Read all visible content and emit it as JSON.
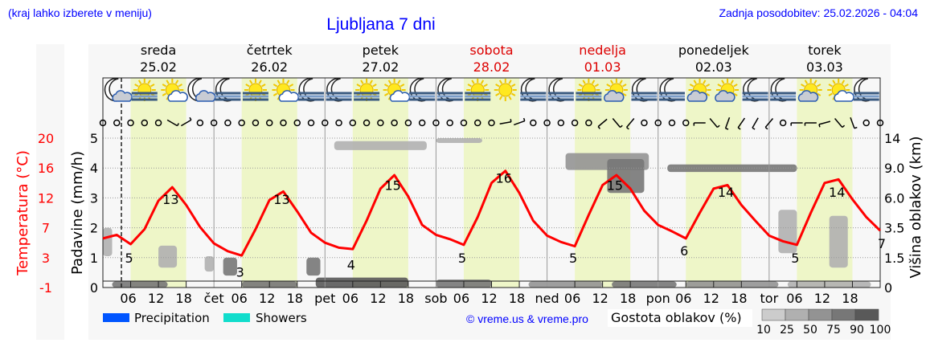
{
  "header": {
    "hint": "(kraj lahko izberete v meniju)",
    "title": "Ljubljana 7 dni",
    "updated": "Zadnja posodobitev: 25.02.2026 - 04:04"
  },
  "colors": {
    "accent": "#0000ff",
    "weekend": "#dd0000",
    "temperature": "#ff0000",
    "day_band": "#eef6c8",
    "precipitation": "#0055ff",
    "showers": "#11ddcc"
  },
  "days": [
    {
      "name": "sreda",
      "date": "25.02",
      "weekend": false,
      "abbr": ""
    },
    {
      "name": "četrtek",
      "date": "26.02",
      "weekend": false,
      "abbr": "čet"
    },
    {
      "name": "petek",
      "date": "27.02",
      "weekend": false,
      "abbr": "pet"
    },
    {
      "name": "sobota",
      "date": "28.02",
      "weekend": true,
      "abbr": "sob"
    },
    {
      "name": "nedelja",
      "date": "01.03",
      "weekend": true,
      "abbr": "ned"
    },
    {
      "name": "ponedeljek",
      "date": "02.03",
      "weekend": false,
      "abbr": "pon"
    },
    {
      "name": "torek",
      "date": "03.03",
      "weekend": false,
      "abbr": "tor"
    }
  ],
  "chart_data": {
    "type": "line",
    "x_unit": "hours from 25.02 00:00",
    "now_marker_hour": 4,
    "hour_ticks": [
      "06",
      "12",
      "18"
    ],
    "left_axis": {
      "label": "Padavine (mm/h)",
      "ticks": [
        0,
        1,
        2,
        3,
        4,
        5
      ],
      "range": [
        0,
        5
      ]
    },
    "temp_axis": {
      "label": "Temperatura (°C)",
      "ticks": [
        -1,
        3,
        7,
        12,
        16,
        20
      ],
      "range": [
        -1,
        20
      ]
    },
    "right_axis": {
      "label": "Višina oblakov (km)",
      "ticks": [
        "0",
        "1.5",
        "3.5",
        "6.0",
        "9.0",
        "14"
      ],
      "values": [
        0,
        1.5,
        3.5,
        6,
        9,
        14
      ]
    },
    "temperature": {
      "step_hours": 3,
      "values": [
        5.9,
        6.4,
        5.1,
        7.2,
        11.2,
        13.1,
        10.6,
        7.5,
        5.2,
        4.1,
        3.5,
        7.2,
        11.3,
        12.5,
        9.7,
        6.7,
        5.3,
        4.6,
        4.4,
        8.4,
        12.9,
        14.8,
        11.8,
        7.8,
        6.4,
        5.8,
        5.0,
        8.9,
        13.7,
        15.4,
        12.3,
        8.4,
        6.3,
        5.4,
        4.8,
        9.2,
        13.4,
        14.8,
        12.9,
        9.8,
        7.8,
        6.9,
        5.9,
        9.5,
        12.9,
        13.4,
        10.6,
        8.4,
        6.3,
        5.5,
        5.0,
        9.5,
        13.7,
        14.2,
        11.4,
        8.9,
        7.0
      ]
    },
    "temp_labels": [
      {
        "hour": 6,
        "text": "5"
      },
      {
        "hour": 15,
        "text": "13"
      },
      {
        "hour": 30,
        "text": "3"
      },
      {
        "hour": 39,
        "text": "13"
      },
      {
        "hour": 54,
        "text": "4"
      },
      {
        "hour": 63,
        "text": "15"
      },
      {
        "hour": 78,
        "text": "5"
      },
      {
        "hour": 87,
        "text": "16"
      },
      {
        "hour": 102,
        "text": "5"
      },
      {
        "hour": 111,
        "text": "15"
      },
      {
        "hour": 126,
        "text": "6"
      },
      {
        "hour": 135,
        "text": "14"
      },
      {
        "hour": 150,
        "text": "5"
      },
      {
        "hour": 159,
        "text": "14"
      },
      {
        "hour": 168,
        "text": "7"
      }
    ],
    "clouds": [
      {
        "t0": 2,
        "t1": 14,
        "h0": 0,
        "h1": 0.3,
        "density": 85
      },
      {
        "t0": 30,
        "t1": 42,
        "h0": 0,
        "h1": 0.3,
        "density": 80
      },
      {
        "t0": 46,
        "t1": 66,
        "h0": 0,
        "h1": 0.5,
        "density": 90
      },
      {
        "t0": 72,
        "t1": 84,
        "h0": 0,
        "h1": 0.4,
        "density": 80
      },
      {
        "t0": 92,
        "t1": 108,
        "h0": 0,
        "h1": 0.3,
        "density": 70
      },
      {
        "t0": 110,
        "t1": 124,
        "h0": 0,
        "h1": 0.3,
        "density": 75
      },
      {
        "t0": 126,
        "t1": 146,
        "h0": 0,
        "h1": 0.3,
        "density": 55
      },
      {
        "t0": 148,
        "t1": 166,
        "h0": 0,
        "h1": 0.3,
        "density": 45
      },
      {
        "t0": 12,
        "t1": 16,
        "h0": 1.0,
        "h1": 2.3,
        "density": 35
      },
      {
        "t0": 22,
        "t1": 24,
        "h0": 0.8,
        "h1": 1.6,
        "density": 40
      },
      {
        "t0": 26,
        "t1": 29,
        "h0": 0.6,
        "h1": 1.5,
        "density": 80
      },
      {
        "t0": 44,
        "t1": 47,
        "h0": 0.6,
        "h1": 1.5,
        "density": 85
      },
      {
        "t0": 50,
        "t1": 70,
        "h0": 12.0,
        "h1": 13.5,
        "density": 40
      },
      {
        "t0": 72,
        "t1": 82,
        "h0": 13.2,
        "h1": 14.0,
        "density": 30
      },
      {
        "t0": 100,
        "t1": 118,
        "h0": 8.8,
        "h1": 11.5,
        "density": 55
      },
      {
        "t0": 109,
        "t1": 117,
        "h0": 6.5,
        "h1": 10.5,
        "density": 85
      },
      {
        "t0": 122,
        "t1": 150,
        "h0": 8.6,
        "h1": 9.6,
        "density": 80
      },
      {
        "t0": 146,
        "t1": 150,
        "h0": 1.8,
        "h1": 5.0,
        "density": 40
      },
      {
        "t0": 157,
        "t1": 161,
        "h0": 1.0,
        "h1": 4.5,
        "density": 35
      },
      {
        "t0": 0,
        "t1": 2,
        "h0": 1.6,
        "h1": 3.5,
        "density": 30
      }
    ],
    "cloud_legend": {
      "label": "Gostota oblakov (%)",
      "ticks": [
        "10",
        "25",
        "50",
        "75",
        "90",
        "100"
      ],
      "colors": [
        "#cccccc",
        "#b0b0b0",
        "#939393",
        "#777777",
        "#595959"
      ]
    },
    "legend": [
      {
        "name": "Precipitation",
        "color": "#0055ff"
      },
      {
        "name": "Showers",
        "color": "#11ddcc"
      }
    ],
    "weather_icons": [
      "moon-cloud",
      "sun-fog",
      "sun-cloud",
      "moon-cloud",
      "moon-fog",
      "sun-fog",
      "sun-cloud",
      "moon-fog",
      "moon-fog",
      "sun-fog",
      "sun-cloud",
      "moon-fog",
      "moon-fog",
      "sun-fog",
      "sun",
      "moon-fog",
      "moon-fog",
      "sun-fog",
      "sun-graycloud",
      "moon-fog",
      "moon-fog",
      "sun-graycloud",
      "sun-graycloud",
      "moon-fog",
      "moon-fog",
      "sun-graycloud",
      "sun-cloud",
      "moon-fog"
    ],
    "wind": [
      "calm",
      "calm",
      "calm",
      "calm",
      "calm",
      120,
      60,
      "calm",
      "calm",
      "calm",
      "calm",
      "calm",
      "calm",
      "calm",
      "calm",
      "calm",
      "calm",
      "calm",
      "calm",
      "calm",
      "calm",
      "calm",
      "calm",
      "calm",
      "calm",
      "calm",
      "calm",
      "calm",
      "calm",
      80,
      70,
      "calm",
      "calm",
      "calm",
      "calm",
      "calm",
      230,
      140,
      220,
      "calm",
      "calm",
      "calm",
      "calm",
      270,
      140,
      200,
      215,
      210,
      220,
      "calm",
      270,
      270,
      255,
      140,
      160,
      "calm",
      "calm"
    ]
  },
  "credit": "© vreme.us & vreme.pro"
}
